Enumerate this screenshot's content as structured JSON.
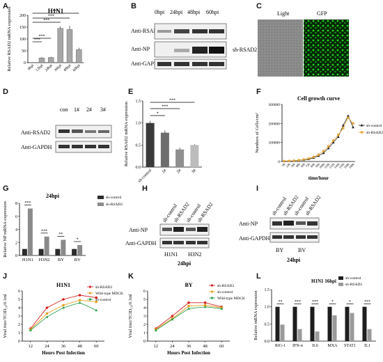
{
  "panels": {
    "A": {
      "letter": "A"
    },
    "B": {
      "letter": "B"
    },
    "C": {
      "letter": "C"
    },
    "D": {
      "letter": "D"
    },
    "E": {
      "letter": "E"
    },
    "F": {
      "letter": "F"
    },
    "G": {
      "letter": "G"
    },
    "H": {
      "letter": "H"
    },
    "I": {
      "letter": "I"
    },
    "J": {
      "letter": "J"
    },
    "K": {
      "letter": "K"
    },
    "L": {
      "letter": "L"
    }
  },
  "blotB": {
    "lanes": [
      "0hpi",
      "24hpi",
      "48hpi",
      "60hpi"
    ],
    "rows": [
      "Anti-RSAD2",
      "Anti-NP",
      "Anti-GAPDH"
    ]
  },
  "panelC": {
    "cols": [
      "Light",
      "GFP"
    ],
    "row": "sh-RSAD2",
    "gfp_color": "#17c417"
  },
  "blotD": {
    "lanes": [
      "con",
      "1#",
      "2#",
      "3#"
    ],
    "rows": [
      "Anti-RSAD2",
      "Anti-GAPDH"
    ]
  },
  "blotH": {
    "lanes": [
      "sh-control",
      "sh-RSAD2",
      "sh-control",
      "sh-RSAD2"
    ],
    "rows": [
      "Anti-NP",
      "Anti-GAPDH"
    ],
    "groups": [
      "H1N1",
      "H3N2"
    ],
    "time": "24hpi"
  },
  "blotI": {
    "lanes": [
      "sh-control",
      "sh-RSAD2",
      "sh-control",
      "sh-RSAD2"
    ],
    "rows": [
      "Anti-NP",
      "Anti-GAPDH"
    ],
    "groups": [
      "BY",
      "BV"
    ],
    "time": "24hpi"
  },
  "sig": {
    "three": "***",
    "two": "**",
    "one": "*"
  },
  "chart_data": [
    {
      "id": "A",
      "type": "bar",
      "title": "H1N1",
      "ylabel": "Relative RSAD2 mRNA expression",
      "categories": [
        "0hpi",
        "12hpi",
        "24hpi",
        "36hpi",
        "48hpi",
        "60hpi"
      ],
      "values": [
        1,
        20,
        22,
        145,
        140,
        55
      ],
      "errors": [
        1,
        3,
        3,
        8,
        15,
        8
      ],
      "ylim": [
        0,
        200
      ],
      "yticks": [
        0,
        50,
        100,
        150,
        200
      ],
      "color": "#a6a6a6",
      "significance": [
        "***",
        "***",
        "***",
        "***",
        "***"
      ]
    },
    {
      "id": "E",
      "type": "bar",
      "ylabel": "Relative RSAD2 mRNA expression",
      "categories": [
        "sh-control",
        "1#",
        "2#",
        "3#"
      ],
      "values": [
        1.0,
        0.78,
        0.4,
        0.5
      ],
      "errors": [
        0.05,
        0.05,
        0.04,
        0.02
      ],
      "colors": [
        "#3a3a3a",
        "#6d6d6d",
        "#8f8f8f",
        "#bcbcbc"
      ],
      "ylim": [
        0,
        1.5
      ],
      "yticks": [
        0.0,
        0.5,
        1.0,
        1.5
      ],
      "significance": [
        "*",
        "***",
        "***"
      ]
    },
    {
      "id": "F",
      "type": "line",
      "title": "Cell growth curve",
      "xlabel": "time/hour",
      "ylabel": "Numbers of Cells/cm²",
      "x": [
        "0h",
        "24h",
        "36h",
        "48h",
        "60h",
        "72h",
        "84h",
        "96h",
        "108h",
        "120h",
        "132h",
        "144h",
        "156h",
        "168h",
        "180h"
      ],
      "ylim": [
        0,
        300000
      ],
      "yticks": [
        0,
        100000,
        200000,
        300000
      ],
      "series": [
        {
          "name": "sh-control",
          "color": "#222222",
          "marker": "triangle",
          "values": [
            2000,
            3000,
            4000,
            6000,
            9000,
            13000,
            20000,
            30000,
            45000,
            70000,
            100000,
            130000,
            190000,
            240000,
            180000
          ]
        },
        {
          "name": "sh-RSAD2",
          "color": "#e2a33a",
          "marker": "circle",
          "values": [
            2000,
            3000,
            5000,
            7000,
            11000,
            16000,
            24000,
            36000,
            55000,
            80000,
            110000,
            140000,
            175000,
            230000,
            200000
          ]
        }
      ]
    },
    {
      "id": "G",
      "type": "bar",
      "title": "24hpi",
      "ylabel": "Relative NP mRNA expression",
      "categories": [
        "H1N1",
        "H3N2",
        "BY",
        "BV"
      ],
      "ylim": [
        0,
        8
      ],
      "yticks": [
        0,
        2,
        4,
        6,
        8
      ],
      "series": [
        {
          "name": "sh-control",
          "color": "#2b2b2b",
          "values": [
            1.0,
            1.0,
            1.0,
            1.0
          ]
        },
        {
          "name": "sh-RSAD2",
          "color": "#8a8a8a",
          "values": [
            7.2,
            2.9,
            2.4,
            1.6
          ]
        }
      ],
      "significance": [
        "***",
        "***",
        "**",
        "*"
      ]
    },
    {
      "id": "J",
      "type": "line",
      "title": "H1N1",
      "xlabel": "Hours Post Infection",
      "ylabel": "Viral titer/TCID₅₀/0.1ml",
      "x": [
        12,
        24,
        36,
        48,
        60
      ],
      "ylim": [
        0,
        6
      ],
      "yticks": [
        0,
        1,
        2,
        3,
        4,
        5,
        6
      ],
      "series": [
        {
          "name": "sh-RSAD2",
          "color": "#d42020",
          "marker": "circle",
          "values": [
            1.5,
            4.0,
            5.0,
            5.5,
            5.2
          ]
        },
        {
          "name": "Wild-type MDCK",
          "color": "#e6a020",
          "marker": "square",
          "values": [
            1.4,
            3.3,
            4.3,
            4.9,
            4.7
          ]
        },
        {
          "name": "sh-control",
          "color": "#2aa04a",
          "marker": "triangle",
          "values": [
            1.3,
            2.9,
            4.0,
            4.6,
            3.7
          ]
        }
      ]
    },
    {
      "id": "K",
      "type": "line",
      "title": "BY",
      "xlabel": "Hours Post Infection",
      "ylabel": "Viral titer/TCID₅₀/0.1ml",
      "x": [
        12,
        24,
        36,
        48,
        60
      ],
      "ylim": [
        0,
        6
      ],
      "yticks": [
        0,
        1,
        2,
        3,
        4,
        5,
        6
      ],
      "series": [
        {
          "name": "sh-RSAD2",
          "color": "#d42020",
          "marker": "circle",
          "values": [
            1.5,
            3.0,
            4.6,
            4.6,
            4.1
          ]
        },
        {
          "name": "sh-control",
          "color": "#e6a020",
          "marker": "square",
          "values": [
            1.4,
            2.7,
            4.2,
            4.3,
            4.0
          ]
        },
        {
          "name": "Wild-type MDCK",
          "color": "#2aa04a",
          "marker": "triangle",
          "values": [
            1.3,
            2.6,
            3.9,
            4.1,
            3.9
          ]
        }
      ]
    },
    {
      "id": "L",
      "type": "bar",
      "title": "H1N1 16hpi",
      "ylabel": "Relative mRNA expression",
      "categories": [
        "RIG-1",
        "IFN-α",
        "IL6",
        "MXA",
        "STAT1",
        "IL1"
      ],
      "ylim": [
        0.0,
        1.5
      ],
      "yticks": [
        0.0,
        0.5,
        1.0,
        1.5
      ],
      "series": [
        {
          "name": "sh-control",
          "color": "#1e1e1e",
          "values": [
            1.0,
            1.0,
            1.0,
            1.0,
            1.0,
            1.0
          ]
        },
        {
          "name": "sh-RSAD2",
          "color": "#9a9a9a",
          "values": [
            0.48,
            0.35,
            0.28,
            0.75,
            0.82,
            0.35
          ]
        }
      ],
      "significance": [
        "**",
        "***",
        "***",
        "*",
        "*",
        "***"
      ]
    }
  ]
}
